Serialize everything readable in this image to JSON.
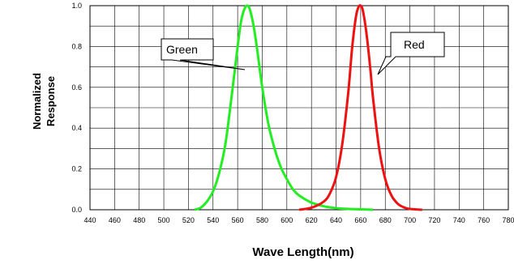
{
  "chart_data": {
    "type": "line",
    "xlabel": "Wave Length(nm)",
    "ylabel_line1": "Normalized",
    "ylabel_line2": "Response",
    "xlim": [
      440,
      780
    ],
    "ylim": [
      0,
      1.0
    ],
    "x_ticks": [
      440,
      460,
      480,
      500,
      520,
      540,
      560,
      580,
      600,
      620,
      640,
      660,
      680,
      700,
      720,
      740,
      760,
      780
    ],
    "y_ticks": [
      "0.0",
      "0.2",
      "0.4",
      "0.6",
      "0.8",
      "1.0"
    ],
    "grid": true,
    "annotations": [
      "Green",
      "Red"
    ],
    "series": [
      {
        "name": "Green",
        "color": "#22ee22",
        "x": [
          525,
          530,
          535,
          540,
          545,
          550,
          555,
          560,
          563,
          566,
          568,
          570,
          573,
          576,
          580,
          585,
          590,
          595,
          600,
          605,
          610,
          620,
          630,
          640,
          650,
          660,
          670
        ],
        "y": [
          0.0,
          0.01,
          0.04,
          0.09,
          0.18,
          0.32,
          0.55,
          0.8,
          0.93,
          0.99,
          1.0,
          0.98,
          0.9,
          0.78,
          0.6,
          0.42,
          0.3,
          0.21,
          0.15,
          0.1,
          0.07,
          0.035,
          0.017,
          0.008,
          0.004,
          0.002,
          0.0
        ]
      },
      {
        "name": "Red",
        "color": "#ee1111",
        "x": [
          610,
          620,
          630,
          635,
          640,
          645,
          650,
          653,
          656,
          658,
          660,
          662,
          665,
          668,
          670,
          675,
          680,
          685,
          690,
          695,
          700,
          710
        ],
        "y": [
          0.0,
          0.01,
          0.04,
          0.08,
          0.16,
          0.32,
          0.58,
          0.79,
          0.94,
          0.99,
          1.0,
          0.97,
          0.85,
          0.68,
          0.55,
          0.3,
          0.15,
          0.07,
          0.03,
          0.012,
          0.004,
          0.0
        ]
      }
    ]
  }
}
